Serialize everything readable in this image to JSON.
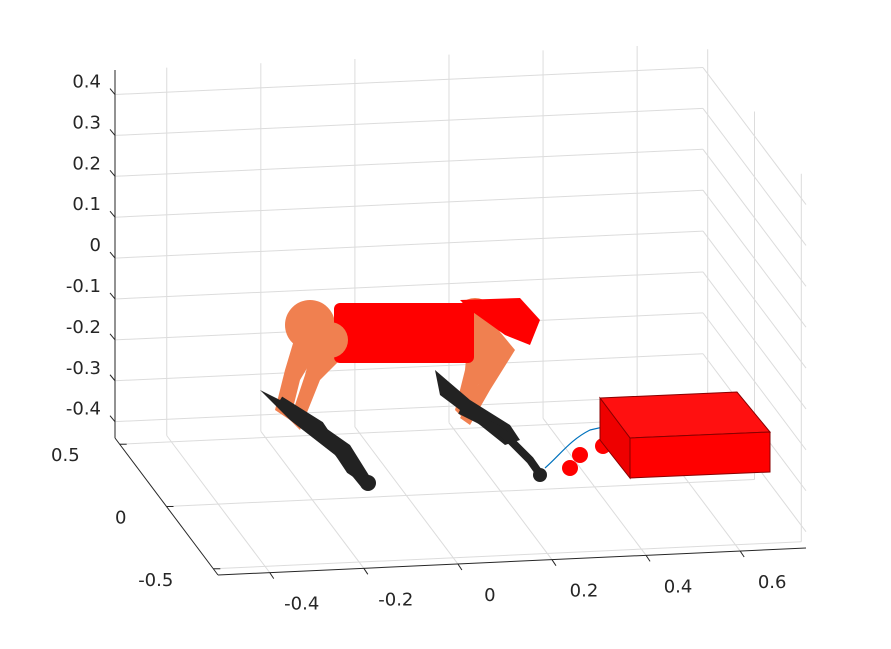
{
  "chart_data": {
    "type": "3d",
    "xlim": [
      -0.51,
      0.74
    ],
    "xticks": [
      -0.4,
      -0.2,
      0,
      0.2,
      0.4,
      0.6
    ],
    "ylim": [
      -0.55,
      0.55
    ],
    "yticks": [
      -0.5,
      0,
      0.5
    ],
    "zlim": [
      -0.44,
      0.46
    ],
    "zticks": [
      -0.4,
      -0.3,
      -0.2,
      -0.1,
      0,
      0.1,
      0.2,
      0.3,
      0.4
    ],
    "grid": true
  }
}
